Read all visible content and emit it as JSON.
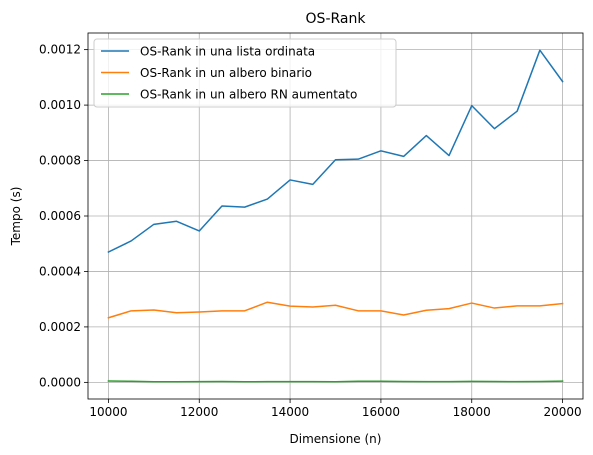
{
  "chart_data": {
    "type": "line",
    "title": "OS-Rank",
    "xlabel": "Dimensione (n)",
    "ylabel": "Tempo (s)",
    "xlim": [
      9550,
      20450
    ],
    "ylim": [
      -6e-05,
      0.00126
    ],
    "xticks": [
      10000,
      12000,
      14000,
      16000,
      18000,
      20000
    ],
    "xtick_labels": [
      "10000",
      "12000",
      "14000",
      "16000",
      "18000",
      "20000"
    ],
    "yticks": [
      0,
      0.0002,
      0.0004,
      0.0006,
      0.0008,
      0.001,
      0.0012
    ],
    "ytick_labels": [
      "0.0000",
      "0.0002",
      "0.0004",
      "0.0006",
      "0.0008",
      "0.0010",
      "0.0012"
    ],
    "grid": true,
    "legend_position": "top-left",
    "x": [
      10000,
      10500,
      11000,
      11500,
      12000,
      12500,
      13000,
      13500,
      14000,
      14500,
      15000,
      15500,
      16000,
      16500,
      17000,
      17500,
      18000,
      18500,
      19000,
      19500,
      20000
    ],
    "series": [
      {
        "name": "OS-Rank in una lista ordinata",
        "color": "#1f77b4",
        "values": [
          0.00047,
          0.00051,
          0.00057,
          0.000581,
          0.000546,
          0.000636,
          0.000632,
          0.000661,
          0.00073,
          0.000714,
          0.000803,
          0.000805,
          0.000835,
          0.000815,
          0.00089,
          0.000818,
          0.000998,
          0.000915,
          0.000978,
          0.001198,
          0.001085
        ]
      },
      {
        "name": "OS-Rank in un albero binario",
        "color": "#ff7f0e",
        "values": [
          0.000233,
          0.000258,
          0.000261,
          0.000251,
          0.000254,
          0.000258,
          0.000258,
          0.000289,
          0.000275,
          0.000272,
          0.000278,
          0.000258,
          0.000258,
          0.000243,
          0.00026,
          0.000266,
          0.000286,
          0.000268,
          0.000276,
          0.000276,
          0.000284
        ]
      },
      {
        "name": "OS-Rank in un albero RN aumentato",
        "color": "#2ca02c",
        "values": [
          5e-06,
          4e-06,
          2e-06,
          2e-06,
          2.5e-06,
          3e-06,
          2e-06,
          2.5e-06,
          2.5e-06,
          2.5e-06,
          2e-06,
          4e-06,
          4e-06,
          3e-06,
          2.5e-06,
          2.5e-06,
          3.5e-06,
          3e-06,
          2.5e-06,
          3e-06,
          4.5e-06
        ]
      }
    ]
  }
}
